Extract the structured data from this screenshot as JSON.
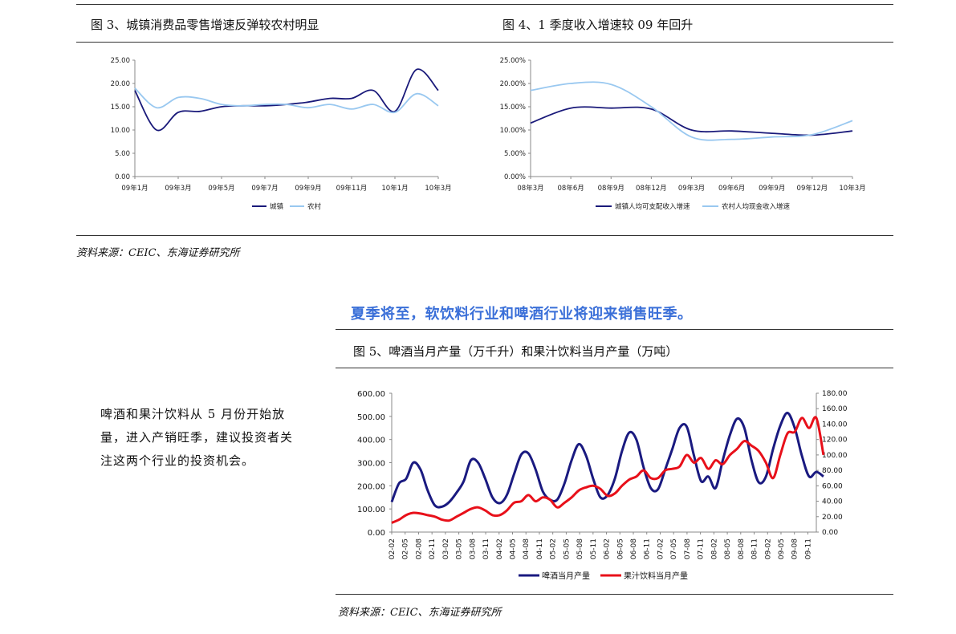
{
  "fig3": {
    "title": "图 3、城镇消费品零售增速反弹较农村明显"
  },
  "fig4": {
    "title": "图 4、1 季度收入增速较 09 年回升"
  },
  "fig5": {
    "title": "图 5、啤酒当月产量（万千升）和果汁饮料当月产量（万吨）"
  },
  "source_top": "资料来源：CEIC、东海证券研究所",
  "source_bottom": "资料来源：CEIC、东海证券研究所",
  "headline": "夏季将至，软饮料行业和啤酒行业将迎来销售旺季。",
  "side_text": "啤酒和果汁饮料从 5 月份开始放量，进入产销旺季，建议投资者关注这两个行业的投资机会。",
  "chart_data": [
    {
      "type": "line",
      "id": "fig3",
      "ylim": [
        0,
        25
      ],
      "yticks": [
        "0.00",
        "5.00",
        "10.00",
        "15.00",
        "20.00",
        "25.00"
      ],
      "xticks": [
        "09年1月",
        "09年3月",
        "09年5月",
        "09年7月",
        "09年9月",
        "09年11月",
        "10年1月",
        "10年3月"
      ],
      "x": [
        "09-01",
        "09-02",
        "09-03",
        "09-04",
        "09-05",
        "09-06",
        "09-07",
        "09-08",
        "09-09",
        "09-10",
        "09-11",
        "09-12",
        "10-01",
        "10-02",
        "10-03"
      ],
      "series": [
        {
          "name": "城镇",
          "color": "#1a1a7a",
          "values": [
            18.5,
            10.0,
            13.8,
            14.0,
            15.0,
            15.2,
            15.2,
            15.5,
            16.0,
            16.8,
            16.8,
            18.5,
            14.0,
            23.0,
            18.5
          ]
        },
        {
          "name": "农村",
          "color": "#99c8f0",
          "values": [
            19.0,
            14.8,
            17.0,
            16.8,
            15.5,
            15.2,
            15.5,
            15.5,
            14.8,
            15.5,
            14.5,
            15.5,
            13.8,
            17.8,
            15.2
          ]
        }
      ]
    },
    {
      "type": "line",
      "id": "fig4",
      "ylim": [
        0,
        25
      ],
      "yticks": [
        "0.00%",
        "5.00%",
        "10.00%",
        "15.00%",
        "20.00%",
        "25.00%"
      ],
      "xticks": [
        "08年3月",
        "08年6月",
        "08年9月",
        "08年12月",
        "09年3月",
        "09年6月",
        "09年9月",
        "09年12月",
        "10年3月"
      ],
      "series": [
        {
          "name": "城镇人均可支配收入增速",
          "color": "#1a1a7a",
          "values": [
            11.5,
            14.7,
            14.7,
            14.5,
            10.0,
            9.8,
            9.3,
            8.9,
            9.8
          ]
        },
        {
          "name": "农村人均现金收入增速",
          "color": "#99c8f0",
          "values": [
            18.5,
            20.0,
            19.8,
            15.0,
            8.5,
            8.0,
            8.5,
            9.0,
            12.0
          ]
        }
      ]
    },
    {
      "type": "line",
      "id": "fig5",
      "ylim_left": [
        0,
        600
      ],
      "ylim_right": [
        0,
        180
      ],
      "yticks_left": [
        "0.00",
        "100.00",
        "200.00",
        "300.00",
        "400.00",
        "500.00",
        "600.00"
      ],
      "yticks_right": [
        "0.00",
        "20.00",
        "40.00",
        "60.00",
        "80.00",
        "100.00",
        "120.00",
        "140.00",
        "160.00",
        "180.00"
      ],
      "xticks": [
        "02-02",
        "02-05",
        "02-08",
        "02-11",
        "03-02",
        "03-05",
        "03-08",
        "03-11",
        "04-02",
        "04-05",
        "04-08",
        "04-11",
        "05-02",
        "05-05",
        "05-08",
        "05-11",
        "06-02",
        "06-05",
        "06-08",
        "06-11",
        "07-02",
        "07-05",
        "07-08",
        "07-11",
        "08-02",
        "08-05",
        "08-08",
        "08-11",
        "09-02",
        "09-05",
        "09-08",
        "09-11"
      ],
      "series": [
        {
          "name": "啤酒当月产量",
          "color": "#1a1a80",
          "axis": "left",
          "values": [
            130,
            210,
            230,
            300,
            270,
            180,
            115,
            110,
            130,
            170,
            220,
            310,
            300,
            230,
            150,
            125,
            160,
            250,
            335,
            340,
            270,
            175,
            140,
            140,
            210,
            310,
            380,
            330,
            230,
            150,
            160,
            230,
            350,
            430,
            400,
            280,
            190,
            185,
            270,
            360,
            450,
            455,
            330,
            220,
            240,
            190,
            310,
            420,
            490,
            450,
            310,
            215,
            240,
            360,
            460,
            515,
            450,
            330,
            240,
            260,
            240
          ]
        },
        {
          "name": "果汁饮料当月产量",
          "color": "#e8101a",
          "axis": "right",
          "values": [
            12,
            16,
            22,
            25,
            24,
            22,
            20,
            16,
            15,
            20,
            25,
            30,
            32,
            28,
            22,
            22,
            28,
            38,
            40,
            48,
            40,
            45,
            42,
            32,
            38,
            45,
            54,
            58,
            60,
            56,
            47,
            50,
            60,
            68,
            72,
            80,
            70,
            70,
            80,
            82,
            85,
            100,
            90,
            96,
            82,
            93,
            88,
            100,
            108,
            118,
            112,
            105,
            90,
            70,
            100,
            128,
            130,
            148,
            135,
            148,
            100
          ]
        }
      ]
    }
  ]
}
